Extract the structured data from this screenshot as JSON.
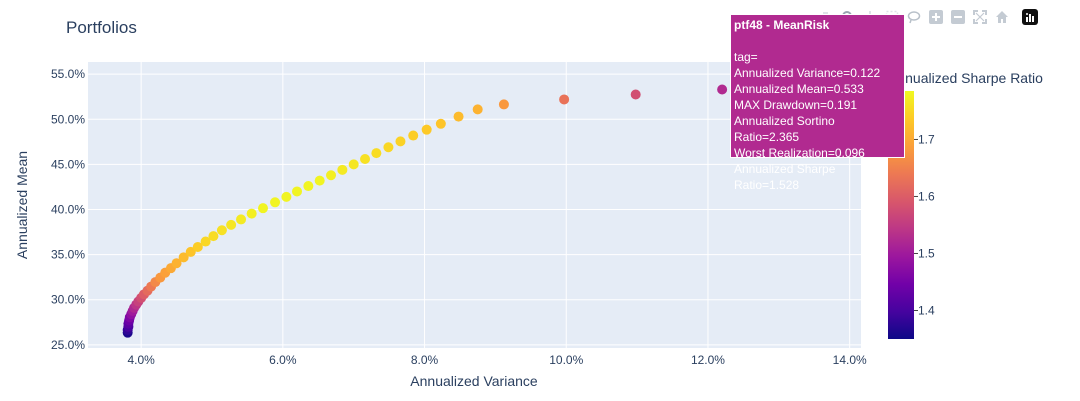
{
  "chart_data": {
    "type": "scatter",
    "title": "Portfolios",
    "xlabel": "Annualized Variance",
    "ylabel": "Annualized Mean",
    "xlim": [
      0.0325,
      0.1416
    ],
    "ylim": [
      0.2465,
      0.5635
    ],
    "xticks": [
      0.04,
      0.06,
      0.08,
      0.1,
      0.12,
      0.14
    ],
    "xtick_labels": [
      "4.0%",
      "6.0%",
      "8.0%",
      "10.0%",
      "12.0%",
      "14.0%"
    ],
    "yticks": [
      0.25,
      0.3,
      0.35,
      0.4,
      0.45,
      0.5,
      0.55
    ],
    "ytick_labels": [
      "25.0%",
      "30.0%",
      "35.0%",
      "40.0%",
      "45.0%",
      "50.0%",
      "55.0%"
    ],
    "grid": true,
    "colorbar": {
      "title": "Annualized Sharpe Ratio",
      "range": [
        1.35,
        1.785
      ],
      "ticks": [
        1.4,
        1.5,
        1.6,
        1.7
      ],
      "tick_labels": [
        "1.4",
        "1.5",
        "1.6",
        "1.7"
      ],
      "colorscale": [
        "#0d0887",
        "#46039f",
        "#7201a8",
        "#9c179e",
        "#bd3786",
        "#d8576b",
        "#ed7953",
        "#fb9f3a",
        "#fdca26",
        "#f0f921"
      ]
    },
    "points": [
      {
        "x": 0.0381,
        "y": 0.2635,
        "c": 1.36
      },
      {
        "x": 0.0381,
        "y": 0.2665,
        "c": 1.38
      },
      {
        "x": 0.0382,
        "y": 0.27,
        "c": 1.4
      },
      {
        "x": 0.0382,
        "y": 0.2735,
        "c": 1.42
      },
      {
        "x": 0.0383,
        "y": 0.277,
        "c": 1.44
      },
      {
        "x": 0.0384,
        "y": 0.2805,
        "c": 1.46
      },
      {
        "x": 0.0386,
        "y": 0.284,
        "c": 1.48
      },
      {
        "x": 0.0388,
        "y": 0.2875,
        "c": 1.5
      },
      {
        "x": 0.039,
        "y": 0.291,
        "c": 1.52
      },
      {
        "x": 0.0393,
        "y": 0.2945,
        "c": 1.54
      },
      {
        "x": 0.0396,
        "y": 0.298,
        "c": 1.56
      },
      {
        "x": 0.04,
        "y": 0.302,
        "c": 1.58
      },
      {
        "x": 0.0404,
        "y": 0.306,
        "c": 1.6
      },
      {
        "x": 0.0409,
        "y": 0.31,
        "c": 1.62
      },
      {
        "x": 0.0414,
        "y": 0.3145,
        "c": 1.64
      },
      {
        "x": 0.042,
        "y": 0.3195,
        "c": 1.66
      },
      {
        "x": 0.0427,
        "y": 0.3245,
        "c": 1.68
      },
      {
        "x": 0.0434,
        "y": 0.33,
        "c": 1.69
      },
      {
        "x": 0.0442,
        "y": 0.335,
        "c": 1.7
      },
      {
        "x": 0.045,
        "y": 0.3405,
        "c": 1.71
      },
      {
        "x": 0.046,
        "y": 0.347,
        "c": 1.72
      },
      {
        "x": 0.047,
        "y": 0.353,
        "c": 1.73
      },
      {
        "x": 0.048,
        "y": 0.3585,
        "c": 1.74
      },
      {
        "x": 0.0491,
        "y": 0.3645,
        "c": 1.75
      },
      {
        "x": 0.0502,
        "y": 0.3705,
        "c": 1.755
      },
      {
        "x": 0.0514,
        "y": 0.377,
        "c": 1.76
      },
      {
        "x": 0.0527,
        "y": 0.383,
        "c": 1.765
      },
      {
        "x": 0.0541,
        "y": 0.389,
        "c": 1.77
      },
      {
        "x": 0.0556,
        "y": 0.3955,
        "c": 1.775
      },
      {
        "x": 0.0572,
        "y": 0.4015,
        "c": 1.78
      },
      {
        "x": 0.0589,
        "y": 0.408,
        "c": 1.78
      },
      {
        "x": 0.0605,
        "y": 0.414,
        "c": 1.78
      },
      {
        "x": 0.062,
        "y": 0.42,
        "c": 1.78
      },
      {
        "x": 0.0636,
        "y": 0.426,
        "c": 1.78
      },
      {
        "x": 0.0652,
        "y": 0.432,
        "c": 1.78
      },
      {
        "x": 0.0668,
        "y": 0.438,
        "c": 1.775
      },
      {
        "x": 0.0684,
        "y": 0.444,
        "c": 1.77
      },
      {
        "x": 0.07,
        "y": 0.45,
        "c": 1.765
      },
      {
        "x": 0.0716,
        "y": 0.456,
        "c": 1.76
      },
      {
        "x": 0.0732,
        "y": 0.4625,
        "c": 1.755
      },
      {
        "x": 0.0749,
        "y": 0.469,
        "c": 1.75
      },
      {
        "x": 0.0766,
        "y": 0.4755,
        "c": 1.745
      },
      {
        "x": 0.0784,
        "y": 0.482,
        "c": 1.74
      },
      {
        "x": 0.0803,
        "y": 0.4885,
        "c": 1.735
      },
      {
        "x": 0.0823,
        "y": 0.495,
        "c": 1.73
      },
      {
        "x": 0.0848,
        "y": 0.503,
        "c": 1.72
      },
      {
        "x": 0.0875,
        "y": 0.511,
        "c": 1.71
      },
      {
        "x": 0.0912,
        "y": 0.5165,
        "c": 1.68
      },
      {
        "x": 0.0997,
        "y": 0.522,
        "c": 1.63
      },
      {
        "x": 0.1098,
        "y": 0.5275,
        "c": 1.58
      },
      {
        "x": 0.122,
        "y": 0.533,
        "c": 1.528
      }
    ]
  },
  "tooltip": {
    "title": "ptf48 - MeanRisk",
    "lines": [
      "tag=",
      "Annualized Variance=0.122",
      "Annualized Mean=0.533",
      "MAX Drawdown=0.191",
      "Annualized Sortino Ratio=2.365",
      "Worst Realization=0.096",
      "Annualized Sharpe Ratio=1.528"
    ],
    "background": "#b12a90"
  },
  "modebar": {
    "icons": [
      "camera-icon",
      "zoom-icon",
      "pan-icon",
      "box-select-icon",
      "lasso-select-icon",
      "zoom-in-icon",
      "zoom-out-icon",
      "autoscale-icon",
      "reset-axes-icon",
      "plotly-logo-icon"
    ]
  }
}
